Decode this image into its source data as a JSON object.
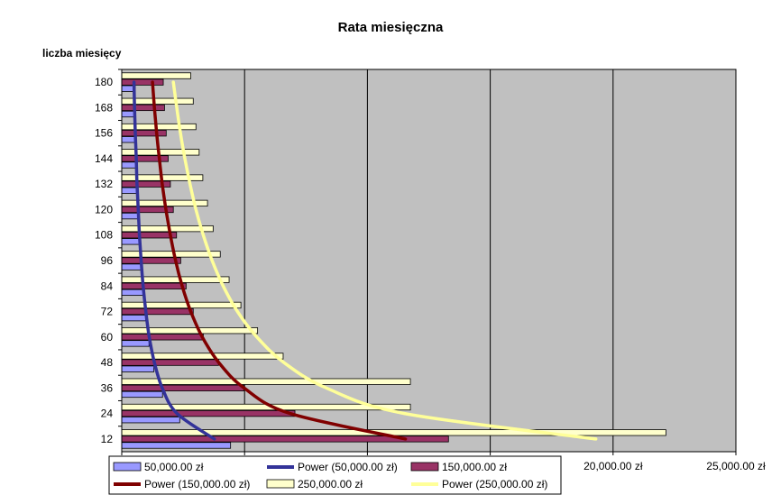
{
  "chart_data": {
    "type": "bar",
    "orientation": "horizontal",
    "title": "Rata miesięczna",
    "ylabel": "liczba miesięcy",
    "xlabel": "",
    "categories": [
      12,
      24,
      36,
      48,
      60,
      72,
      84,
      96,
      108,
      120,
      132,
      144,
      156,
      168,
      180
    ],
    "y_tick_labels": [
      "12",
      "24",
      "36",
      "48",
      "60",
      "72",
      "84",
      "96",
      "108",
      "120",
      "132",
      "144",
      "156",
      "168",
      "180"
    ],
    "x_tick_labels": [
      "0",
      "",
      "",
      "",
      "20,000.00 zł",
      "25,000.00 zł"
    ],
    "x_ticks": [
      0,
      5000,
      10000,
      15000,
      20000,
      25000
    ],
    "xlim": [
      0,
      25000
    ],
    "grid": "vertical",
    "plot_background": "#C0C0C0",
    "series": [
      {
        "name": "50,000.00 zł",
        "color": "#9999FF",
        "values": [
          4430,
          2360,
          1660,
          1310,
          1110,
          970,
          870,
          790,
          740,
          690,
          650,
          620,
          590,
          570,
          550
        ]
      },
      {
        "name": "150,000.00 zł",
        "color": "#993366",
        "values": [
          13300,
          7050,
          4970,
          3940,
          3320,
          2910,
          2620,
          2400,
          2230,
          2100,
          1980,
          1890,
          1810,
          1740,
          1690
        ]
      },
      {
        "name": "250,000.00 zł",
        "color": "#FFFFCC",
        "values": [
          22150,
          11750,
          11750,
          6570,
          5530,
          4850,
          4370,
          4010,
          3720,
          3490,
          3300,
          3150,
          3020,
          2910,
          2810
        ]
      }
    ],
    "trendlines": [
      {
        "name": "Power (50,000.00 zł)",
        "color": "#333399",
        "x": [
          3770,
          2250,
          1650,
          1330,
          1120,
          980,
          870,
          790,
          720,
          670,
          620,
          590,
          550,
          520,
          500
        ],
        "y": [
          12,
          24,
          36,
          48,
          60,
          72,
          84,
          96,
          108,
          120,
          132,
          144,
          156,
          168,
          180
        ]
      },
      {
        "name": "Power (150,000.00 zł)",
        "color": "#800000",
        "x": [
          11550,
          6850,
          4980,
          3950,
          3280,
          2810,
          2460,
          2190,
          1980,
          1800,
          1650,
          1530,
          1420,
          1330,
          1250
        ],
        "y": [
          12,
          24,
          36,
          48,
          60,
          72,
          84,
          96,
          108,
          120,
          132,
          144,
          156,
          168,
          180
        ]
      },
      {
        "name": "Power (250,000.00 zł)",
        "color": "#FFFF99",
        "x": [
          19300,
          11500,
          8330,
          6600,
          5500,
          4710,
          4130,
          3680,
          3320,
          3020,
          2780,
          2570,
          2390,
          2240,
          2100
        ],
        "y": [
          12,
          24,
          36,
          48,
          60,
          72,
          84,
          96,
          108,
          120,
          132,
          144,
          156,
          168,
          180
        ]
      }
    ],
    "legend": {
      "position": "bottom",
      "items": [
        {
          "label": "50,000.00 zł",
          "kind": "bar",
          "color": "#9999FF"
        },
        {
          "label": "Power (50,000.00 zł)",
          "kind": "line",
          "color": "#333399"
        },
        {
          "label": "150,000.00 zł",
          "kind": "bar",
          "color": "#993366"
        },
        {
          "label": "Power (150,000.00 zł)",
          "kind": "line",
          "color": "#800000"
        },
        {
          "label": "250,000.00 zł",
          "kind": "bar",
          "color": "#FFFFCC"
        },
        {
          "label": "Power (250,000.00 zł)",
          "kind": "line",
          "color": "#FFFF99"
        }
      ]
    }
  }
}
